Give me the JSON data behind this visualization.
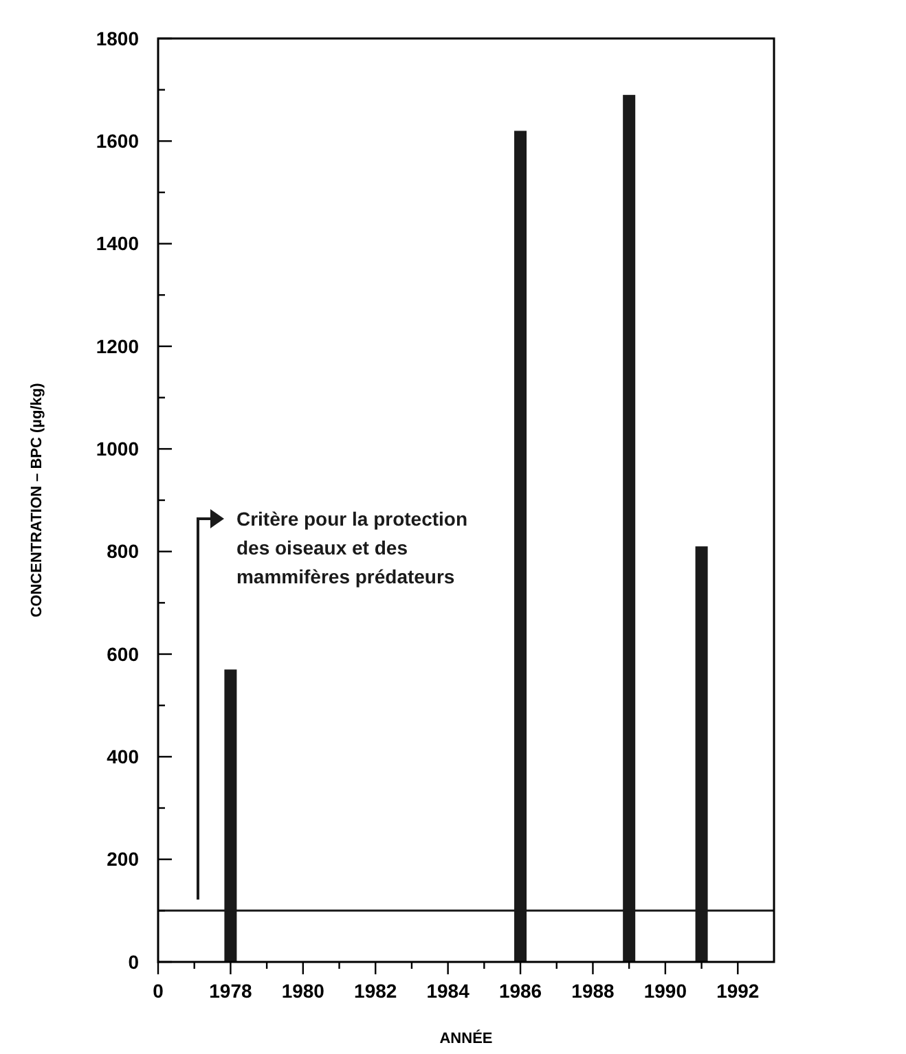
{
  "chart_data": {
    "type": "bar",
    "xlabel": "ANNÉE",
    "ylabel": "CONCENTRATION – BPC (µg/kg)",
    "categories": [
      "0",
      null,
      "1978",
      null,
      "1980",
      null,
      "1982",
      null,
      "1984",
      null,
      "1986",
      null,
      "1988",
      null,
      "1990",
      null,
      "1992"
    ],
    "values": [
      null,
      null,
      570,
      null,
      null,
      null,
      null,
      null,
      null,
      null,
      1620,
      null,
      null,
      1690,
      null,
      810,
      null
    ],
    "color": "#1a1a1a",
    "ylim": [
      0,
      1800
    ],
    "yticks": [
      0,
      {
        "value": 100,
        "label": null
      },
      200,
      {
        "value": 300,
        "label": null
      },
      400,
      {
        "value": 500,
        "label": null
      },
      600,
      {
        "value": 700,
        "label": null
      },
      800,
      {
        "value": 900,
        "label": null
      },
      1000,
      {
        "value": 1100,
        "label": null
      },
      1200,
      {
        "value": 1300,
        "label": null
      },
      1400,
      {
        "value": 1500,
        "label": null
      },
      1600,
      {
        "value": 1700,
        "label": null
      },
      1800
    ],
    "ref_lines": [
      {
        "axis": "y",
        "value": 100,
        "label": "Critère pour la protection\ndes oiseaux et des\nmammifères prédateurs",
        "color": "#1a1a1a"
      }
    ],
    "grid": false
  }
}
